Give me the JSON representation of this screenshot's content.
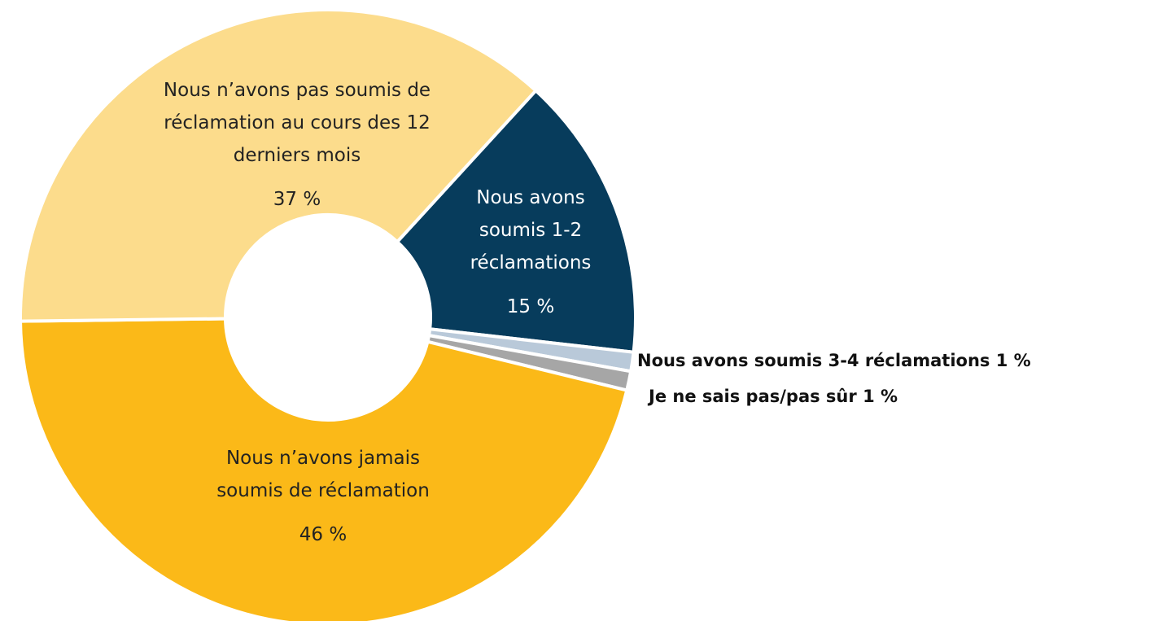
{
  "chart_data": {
    "type": "pie",
    "categories": [
      "Nous avons soumis 1-2 réclamations",
      "Nous avons soumis 3-4 réclamations",
      "Je ne sais pas/pas sûr",
      "Nous n’avons jamais soumis de réclamation",
      "Nous n’avons pas soumis de réclamation au cours des 12 derniers mois"
    ],
    "values": [
      15,
      1,
      1,
      46,
      37
    ],
    "value_labels": [
      "15 %",
      "1 %",
      "1 %",
      "46 %",
      "37 %"
    ],
    "colors": [
      "#073c5c",
      "#b9c9d9",
      "#a6a6a6",
      "#fbb918",
      "#fcdc8c"
    ]
  }
}
